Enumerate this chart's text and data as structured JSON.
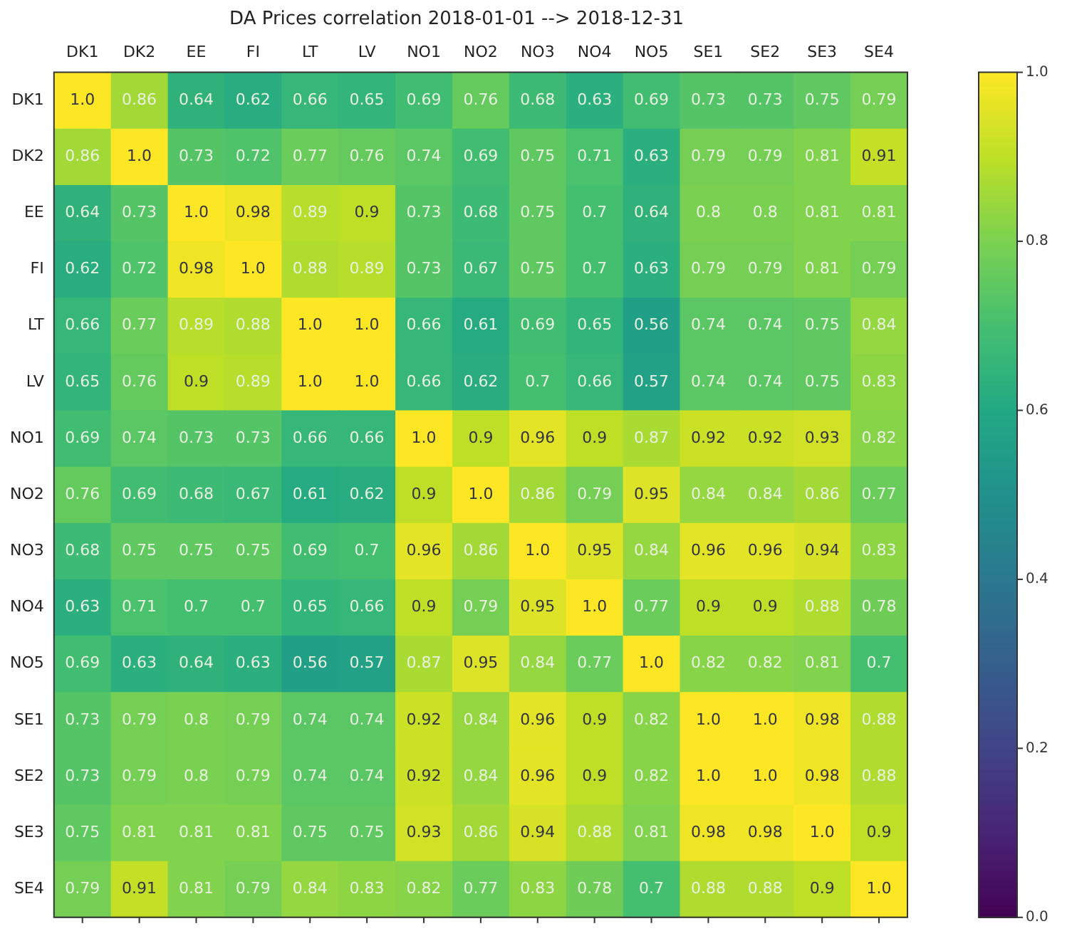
{
  "chart_data": {
    "type": "heatmap",
    "title": "DA Prices correlation 2018-01-01 --> 2018-12-31",
    "categories": [
      "DK1",
      "DK2",
      "EE",
      "FI",
      "LT",
      "LV",
      "NO1",
      "NO2",
      "NO3",
      "NO4",
      "NO5",
      "SE1",
      "SE2",
      "SE3",
      "SE4"
    ],
    "y_categories": [
      "DK1",
      "DK2",
      "EE",
      "FI",
      "LT",
      "LV",
      "NO1",
      "NO2",
      "NO3",
      "NO4",
      "NO5",
      "SE1",
      "SE2",
      "SE3",
      "SE4"
    ],
    "cells": [
      [
        1.0,
        0.86,
        0.64,
        0.62,
        0.66,
        0.65,
        0.69,
        0.76,
        0.68,
        0.63,
        0.69,
        0.73,
        0.73,
        0.75,
        0.79
      ],
      [
        0.86,
        1.0,
        0.73,
        0.72,
        0.77,
        0.76,
        0.74,
        0.69,
        0.75,
        0.71,
        0.63,
        0.79,
        0.79,
        0.81,
        0.91
      ],
      [
        0.64,
        0.73,
        1.0,
        0.98,
        0.89,
        0.9,
        0.73,
        0.68,
        0.75,
        0.7,
        0.64,
        0.8,
        0.8,
        0.81,
        0.81
      ],
      [
        0.62,
        0.72,
        0.98,
        1.0,
        0.88,
        0.89,
        0.73,
        0.67,
        0.75,
        0.7,
        0.63,
        0.79,
        0.79,
        0.81,
        0.79
      ],
      [
        0.66,
        0.77,
        0.89,
        0.88,
        1.0,
        1.0,
        0.66,
        0.61,
        0.69,
        0.65,
        0.56,
        0.74,
        0.74,
        0.75,
        0.84
      ],
      [
        0.65,
        0.76,
        0.9,
        0.89,
        1.0,
        1.0,
        0.66,
        0.62,
        0.7,
        0.66,
        0.57,
        0.74,
        0.74,
        0.75,
        0.83
      ],
      [
        0.69,
        0.74,
        0.73,
        0.73,
        0.66,
        0.66,
        1.0,
        0.9,
        0.96,
        0.9,
        0.87,
        0.92,
        0.92,
        0.93,
        0.82
      ],
      [
        0.76,
        0.69,
        0.68,
        0.67,
        0.61,
        0.62,
        0.9,
        1.0,
        0.86,
        0.79,
        0.95,
        0.84,
        0.84,
        0.86,
        0.77
      ],
      [
        0.68,
        0.75,
        0.75,
        0.75,
        0.69,
        0.7,
        0.96,
        0.86,
        1.0,
        0.95,
        0.84,
        0.96,
        0.96,
        0.94,
        0.83
      ],
      [
        0.63,
        0.71,
        0.7,
        0.7,
        0.65,
        0.66,
        0.9,
        0.79,
        0.95,
        1.0,
        0.77,
        0.9,
        0.9,
        0.88,
        0.78
      ],
      [
        0.69,
        0.63,
        0.64,
        0.63,
        0.56,
        0.57,
        0.87,
        0.95,
        0.84,
        0.77,
        1.0,
        0.82,
        0.82,
        0.81,
        0.7
      ],
      [
        0.73,
        0.79,
        0.8,
        0.79,
        0.74,
        0.74,
        0.92,
        0.84,
        0.96,
        0.9,
        0.82,
        1.0,
        1.0,
        0.98,
        0.88
      ],
      [
        0.73,
        0.79,
        0.8,
        0.79,
        0.74,
        0.74,
        0.92,
        0.84,
        0.96,
        0.9,
        0.82,
        1.0,
        1.0,
        0.98,
        0.88
      ],
      [
        0.75,
        0.81,
        0.81,
        0.81,
        0.75,
        0.75,
        0.93,
        0.86,
        0.94,
        0.88,
        0.81,
        0.98,
        0.98,
        1.0,
        0.9
      ],
      [
        0.79,
        0.91,
        0.81,
        0.79,
        0.84,
        0.83,
        0.82,
        0.77,
        0.83,
        0.78,
        0.7,
        0.88,
        0.88,
        0.9,
        1.0
      ]
    ],
    "cell_labels": [
      [
        "1.0",
        "0.86",
        "0.64",
        "0.62",
        "0.66",
        "0.65",
        "0.69",
        "0.76",
        "0.68",
        "0.63",
        "0.69",
        "0.73",
        "0.73",
        "0.75",
        "0.79"
      ],
      [
        "0.86",
        "1.0",
        "0.73",
        "0.72",
        "0.77",
        "0.76",
        "0.74",
        "0.69",
        "0.75",
        "0.71",
        "0.63",
        "0.79",
        "0.79",
        "0.81",
        "0.91"
      ],
      [
        "0.64",
        "0.73",
        "1.0",
        "0.98",
        "0.89",
        "0.9",
        "0.73",
        "0.68",
        "0.75",
        "0.7",
        "0.64",
        "0.8",
        "0.8",
        "0.81",
        "0.81"
      ],
      [
        "0.62",
        "0.72",
        "0.98",
        "1.0",
        "0.88",
        "0.89",
        "0.73",
        "0.67",
        "0.75",
        "0.7",
        "0.63",
        "0.79",
        "0.79",
        "0.81",
        "0.79"
      ],
      [
        "0.66",
        "0.77",
        "0.89",
        "0.88",
        "1.0",
        "1.0",
        "0.66",
        "0.61",
        "0.69",
        "0.65",
        "0.56",
        "0.74",
        "0.74",
        "0.75",
        "0.84"
      ],
      [
        "0.65",
        "0.76",
        "0.9",
        "0.89",
        "1.0",
        "1.0",
        "0.66",
        "0.62",
        "0.7",
        "0.66",
        "0.57",
        "0.74",
        "0.74",
        "0.75",
        "0.83"
      ],
      [
        "0.69",
        "0.74",
        "0.73",
        "0.73",
        "0.66",
        "0.66",
        "1.0",
        "0.9",
        "0.96",
        "0.9",
        "0.87",
        "0.92",
        "0.92",
        "0.93",
        "0.82"
      ],
      [
        "0.76",
        "0.69",
        "0.68",
        "0.67",
        "0.61",
        "0.62",
        "0.9",
        "1.0",
        "0.86",
        "0.79",
        "0.95",
        "0.84",
        "0.84",
        "0.86",
        "0.77"
      ],
      [
        "0.68",
        "0.75",
        "0.75",
        "0.75",
        "0.69",
        "0.7",
        "0.96",
        "0.86",
        "1.0",
        "0.95",
        "0.84",
        "0.96",
        "0.96",
        "0.94",
        "0.83"
      ],
      [
        "0.63",
        "0.71",
        "0.7",
        "0.7",
        "0.65",
        "0.66",
        "0.9",
        "0.79",
        "0.95",
        "1.0",
        "0.77",
        "0.9",
        "0.9",
        "0.88",
        "0.78"
      ],
      [
        "0.69",
        "0.63",
        "0.64",
        "0.63",
        "0.56",
        "0.57",
        "0.87",
        "0.95",
        "0.84",
        "0.77",
        "1.0",
        "0.82",
        "0.82",
        "0.81",
        "0.7"
      ],
      [
        "0.73",
        "0.79",
        "0.8",
        "0.79",
        "0.74",
        "0.74",
        "0.92",
        "0.84",
        "0.96",
        "0.9",
        "0.82",
        "1.0",
        "1.0",
        "0.98",
        "0.88"
      ],
      [
        "0.73",
        "0.79",
        "0.8",
        "0.79",
        "0.74",
        "0.74",
        "0.92",
        "0.84",
        "0.96",
        "0.9",
        "0.82",
        "1.0",
        "1.0",
        "0.98",
        "0.88"
      ],
      [
        "0.75",
        "0.81",
        "0.81",
        "0.81",
        "0.75",
        "0.75",
        "0.93",
        "0.86",
        "0.94",
        "0.88",
        "0.81",
        "0.98",
        "0.98",
        "1.0",
        "0.9"
      ],
      [
        "0.79",
        "0.91",
        "0.81",
        "0.79",
        "0.84",
        "0.83",
        "0.82",
        "0.77",
        "0.83",
        "0.78",
        "0.7",
        "0.88",
        "0.88",
        "0.9",
        "1.0"
      ]
    ],
    "clim": [
      0,
      1
    ],
    "cticks": [
      {
        "value": 0,
        "label": "0.0"
      },
      0.2,
      0.4,
      0.6,
      0.8,
      {
        "value": 1,
        "label": "1.0"
      }
    ]
  }
}
